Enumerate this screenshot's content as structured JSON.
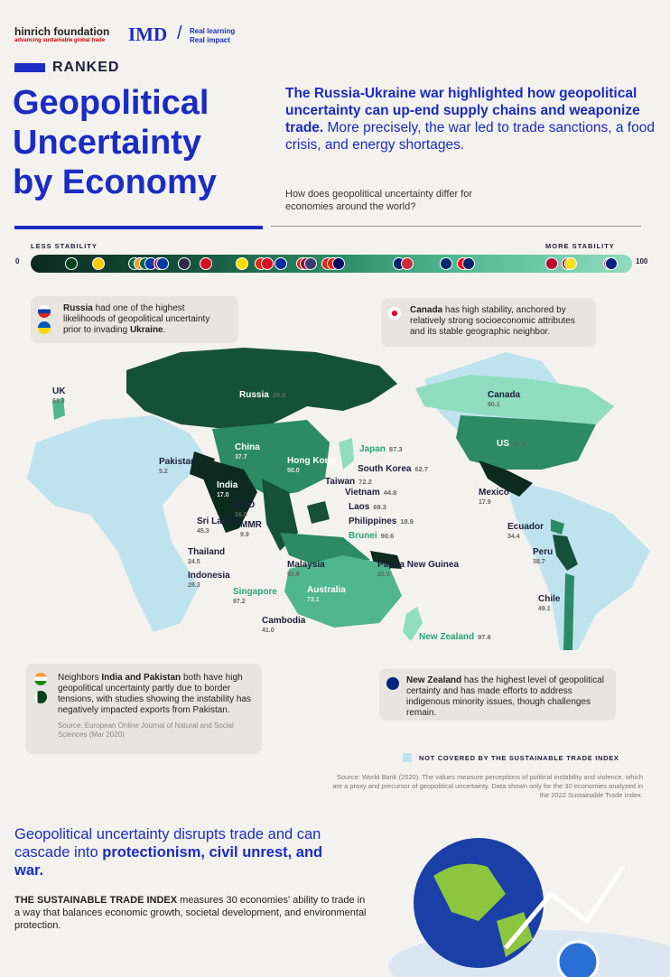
{
  "header": {
    "hinrich_name": "hinrich foundation",
    "hinrich_tagline": "advancing sustainable global trade",
    "imd_logo": "IMD",
    "imd_tagline_1": "Real learning",
    "imd_tagline_2": "Real impact"
  },
  "ranked": "RANKED",
  "title": [
    "Geopolitical",
    "Uncertainty",
    "by Economy"
  ],
  "intro": {
    "bold": "The Russia-Ukraine war highlighted how geopolitical uncertainty can up-end supply chains and weaponize trade.",
    "rest": " More precisely, the war led to trade sanctions, a food crisis, and energy shortages.",
    "question": "How does geopolitical uncertainty differ for economies around the world?"
  },
  "scale": {
    "less": "LESS STABILITY",
    "more": "MORE STABILITY",
    "min": "0",
    "max": "100",
    "flags": [
      {
        "country": "Pakistan",
        "value": 5.2,
        "color": "#01411c"
      },
      {
        "country": "Myanmar",
        "value": 9.9,
        "color": "#fecb00"
      },
      {
        "country": "Bangladesh",
        "value": 16.0,
        "color": "#006a4e"
      },
      {
        "country": "India",
        "value": 17.0,
        "color": "#ff9933"
      },
      {
        "country": "Mexico",
        "value": 17.9,
        "color": "#006847"
      },
      {
        "country": "Philippines",
        "value": 18.9,
        "color": "#0038a8"
      },
      {
        "country": "Papua New Guinea",
        "value": 20.3,
        "color": "#ce1126"
      },
      {
        "country": "Russia",
        "value": 20.8,
        "color": "#0039a6"
      },
      {
        "country": "Thailand",
        "value": 24.5,
        "color": "#2d2a4a"
      },
      {
        "country": "Indonesia",
        "value": 28.3,
        "color": "#ce1126"
      },
      {
        "country": "Ecuador",
        "value": 34.4,
        "color": "#ffdd00"
      },
      {
        "country": "China",
        "value": 37.7,
        "color": "#de2910"
      },
      {
        "country": "Peru",
        "value": 38.7,
        "color": "#d91023"
      },
      {
        "country": "Cambodia",
        "value": 41.0,
        "color": "#032ea1"
      },
      {
        "country": "Vietnam",
        "value": 44.8,
        "color": "#da251d"
      },
      {
        "country": "Sri Lanka",
        "value": 45.3,
        "color": "#8d153a"
      },
      {
        "country": "US",
        "value": 46.2,
        "color": "#3c3b6e"
      },
      {
        "country": "Chile",
        "value": 49.1,
        "color": "#d52b1e"
      },
      {
        "country": "Hong Kong",
        "value": 50.0,
        "color": "#de2910"
      },
      {
        "country": "Malaysia",
        "value": 50.9,
        "color": "#010066"
      },
      {
        "country": "UK",
        "value": 61.3,
        "color": "#012169"
      },
      {
        "country": "South Korea",
        "value": 62.7,
        "color": "#cd2e3a"
      },
      {
        "country": "Laos",
        "value": 69.3,
        "color": "#002868"
      },
      {
        "country": "Taiwan",
        "value": 72.2,
        "color": "#fe0000"
      },
      {
        "country": "Australia",
        "value": 73.1,
        "color": "#012169"
      },
      {
        "country": "Japan",
        "value": 87.3,
        "color": "#bc002d"
      },
      {
        "country": "Canada",
        "value": 90.1,
        "color": "#d80621"
      },
      {
        "country": "Brunei",
        "value": 90.6,
        "color": "#f7e017"
      },
      {
        "country": "Singapore",
        "value": 97.2,
        "color": "#ef3340"
      },
      {
        "country": "New Zealand",
        "value": 97.6,
        "color": "#00247d"
      }
    ]
  },
  "callouts": {
    "russia": {
      "b1": "Russia",
      "t1": " had one of the highest likelihoods of geopolitical uncertainty prior to invading ",
      "b2": "Ukraine",
      "t2": "."
    },
    "canada": {
      "b1": "Canada",
      "t1": " has high stability, anchored by relatively strong socioeconomic attributes and its stable geographic neighbor."
    },
    "india": {
      "t0": "Neighbors ",
      "b1": "India and Pakistan",
      "t1": " both have high geopolitical uncertainty partly due to border tensions, with studies showing the instability has negatively impacted exports from Pakistan.",
      "source": "Source: European Online Journal of Natural and Social Sciences (Mar 2020)"
    },
    "nz": {
      "b1": "New Zealand",
      "t1": " has the highest level of geopolitical certainty and has made efforts to address indigenous minority issues, though challenges remain."
    }
  },
  "map_labels": [
    {
      "name": "Russia",
      "value": "20.8",
      "inline": true
    },
    {
      "name": "UK",
      "value": "61.3"
    },
    {
      "name": "Pakistan",
      "value": "5.2"
    },
    {
      "name": "China",
      "value": "37.7"
    },
    {
      "name": "Hong Kong",
      "value": "50.0"
    },
    {
      "name": "India",
      "value": "17.0"
    },
    {
      "name": "BGD",
      "value": "16.0"
    },
    {
      "name": "MMR",
      "value": "9.9"
    },
    {
      "name": "Sri Lanka",
      "value": "45.3"
    },
    {
      "name": "Thailand",
      "value": "24.5"
    },
    {
      "name": "Indonesia",
      "value": "28.3"
    },
    {
      "name": "Singapore",
      "value": "97.2"
    },
    {
      "name": "Cambodia",
      "value": "41.0"
    },
    {
      "name": "Malaysia",
      "value": "50.9"
    },
    {
      "name": "Japan",
      "value": "87.3",
      "inline": true
    },
    {
      "name": "South Korea",
      "value": "62.7",
      "inline": true
    },
    {
      "name": "Taiwan",
      "value": "72.2",
      "inline": true
    },
    {
      "name": "Vietnam",
      "value": "44.8",
      "inline": true
    },
    {
      "name": "Laos",
      "value": "69.3",
      "inline": true
    },
    {
      "name": "Philippines",
      "value": "18.9",
      "inline": true
    },
    {
      "name": "Brunei",
      "value": "90.6",
      "inline": true
    },
    {
      "name": "Papua New Guinea",
      "value": "20.3"
    },
    {
      "name": "Australia",
      "value": "73.1"
    },
    {
      "name": "New Zealand",
      "value": "97.6",
      "inline": true
    },
    {
      "name": "Canada",
      "value": "90.1"
    },
    {
      "name": "US",
      "value": "46.2",
      "inline": true
    },
    {
      "name": "Mexico",
      "value": "17.9"
    },
    {
      "name": "Ecuador",
      "value": "34.4"
    },
    {
      "name": "Peru",
      "value": "38.7"
    },
    {
      "name": "Chile",
      "value": "49.1"
    }
  ],
  "legend": "NOT COVERED BY THE SUSTAINABLE TRADE INDEX",
  "source": "Source: World Bank (2020). The values measure perceptions of political instability and violence, which are a proxy and precursor of geopolitical uncertainty. Data shown only for the 30 economies analyzed in the 2022 Sustainable Trade Index.",
  "bottom": {
    "h_pre": "Geopolitical uncertainty disrupts trade and can cascade into ",
    "h_bold": "protectionism, civil unrest, and war.",
    "p_bold": "THE SUSTAINABLE TRADE INDEX",
    "p_rest": " measures 30 economies' ability to trade in a way that balances economic growth, societal development, and environmental protection."
  }
}
